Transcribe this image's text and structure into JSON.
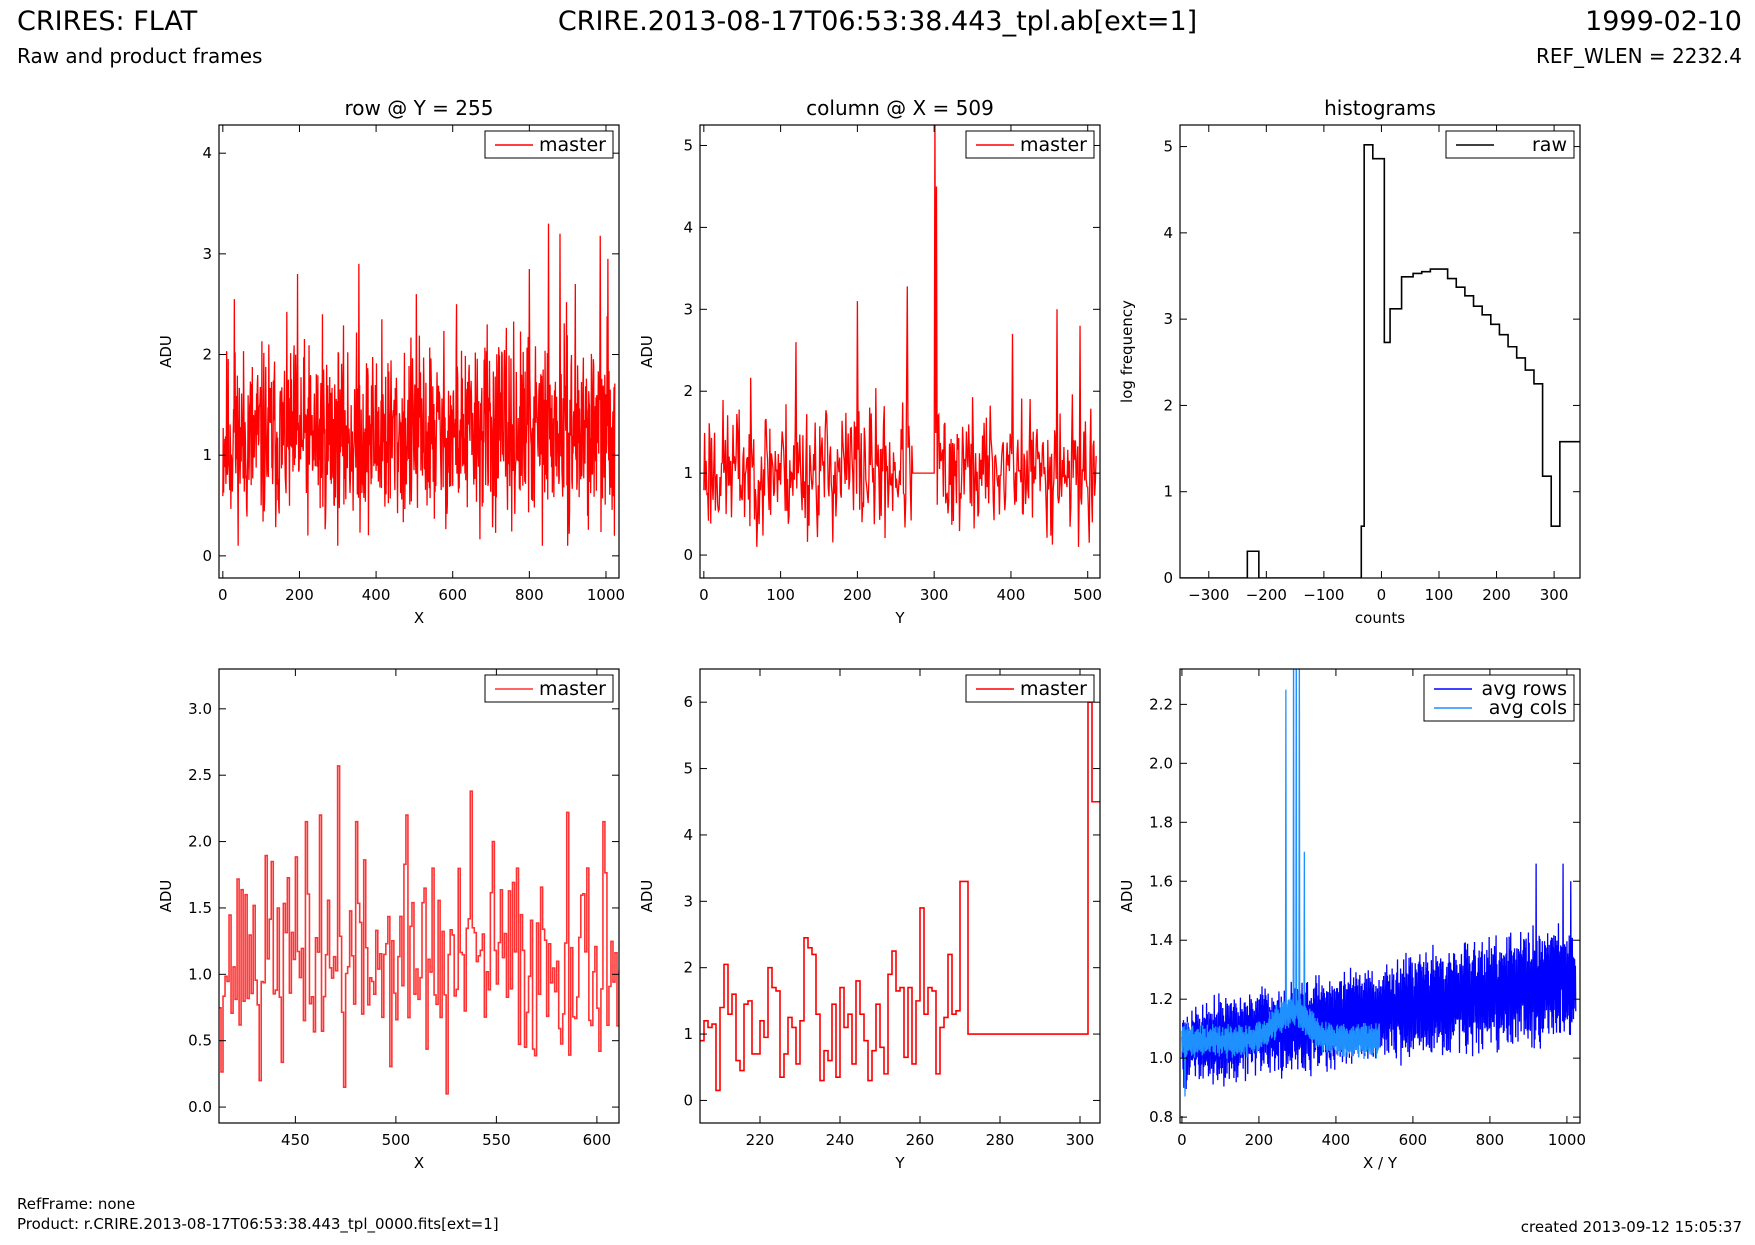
{
  "header": {
    "title_left": "CRIRES: FLAT",
    "subtitle_left": "Raw and product frames",
    "title_center": "CRIRE.2013-08-17T06:53:38.443_tpl.ab[ext=1]",
    "title_right": "1999-02-10",
    "subtitle_right": "REF_WLEN = 2232.4"
  },
  "footer": {
    "refframe": "RefFrame: none",
    "product": "Product: r.CRIRE.2013-08-17T06:53:38.443_tpl_0000.fits[ext=1]",
    "created": "created 2013-09-12 15:05:37"
  },
  "colors": {
    "master": "#ff0000",
    "master_zoom": "#ff3333",
    "raw": "#000000",
    "avg_rows": "#0000ff",
    "avg_cols": "#1e90ff"
  },
  "chart_data": [
    {
      "id": "row",
      "type": "line",
      "title": "row @ Y = 255",
      "xlabel": "X",
      "ylabel": "ADU",
      "xlim": [
        -10,
        1034
      ],
      "ylim": [
        -0.22,
        4.28
      ],
      "xticks": [
        0,
        200,
        400,
        600,
        800,
        1000
      ],
      "yticks": [
        0,
        1,
        2,
        3,
        4
      ],
      "legend": "top-right",
      "series": [
        {
          "name": "master",
          "color": "#ff0000",
          "step": false,
          "generator": {
            "kind": "noise",
            "x0": 0,
            "x1": 1023,
            "n": 1024,
            "base": 1.15,
            "base_end": 1.25,
            "amp": 0.55,
            "min": 0.1,
            "max": 3.3,
            "seed": 11
          },
          "peaks": [
            [
              30,
              2.55
            ],
            [
              120,
              2.1
            ],
            [
              195,
              2.8
            ],
            [
              260,
              2.4
            ],
            [
              355,
              2.9
            ],
            [
              415,
              2.35
            ],
            [
              505,
              2.6
            ],
            [
              610,
              2.5
            ],
            [
              690,
              2.3
            ],
            [
              800,
              2.85
            ],
            [
              850,
              3.3
            ],
            [
              880,
              3.2
            ],
            [
              920,
              2.7
            ],
            [
              985,
              3.18
            ],
            [
              1005,
              2.95
            ],
            [
              1022,
              0.2
            ]
          ]
        }
      ]
    },
    {
      "id": "column",
      "type": "line",
      "title": "column @ X = 509",
      "xlabel": "Y",
      "ylabel": "ADU",
      "xlim": [
        -5,
        516
      ],
      "ylim": [
        -0.28,
        5.25
      ],
      "xticks": [
        0,
        100,
        200,
        300,
        400,
        500
      ],
      "yticks": [
        0,
        1,
        2,
        3,
        4,
        5
      ],
      "legend": "top-right",
      "series": [
        {
          "name": "master",
          "color": "#ff0000",
          "step": false,
          "generator": {
            "kind": "noise",
            "x0": 0,
            "x1": 511,
            "n": 512,
            "base": 1.05,
            "base_end": 1.05,
            "amp": 0.5,
            "min": 0.1,
            "max": 3.3,
            "seed": 23,
            "flat": [
              [
                272,
                301,
                1.0
              ]
            ]
          },
          "peaks": [
            [
              120,
              2.6
            ],
            [
              200,
              3.1
            ],
            [
              265,
              3.28
            ],
            [
              301,
              5.4
            ],
            [
              303,
              4.5
            ],
            [
              402,
              2.7
            ],
            [
              460,
              3.0
            ],
            [
              490,
              2.8
            ],
            [
              502,
              0.15
            ]
          ]
        }
      ]
    },
    {
      "id": "histograms",
      "type": "line",
      "title": "histograms",
      "xlabel": "counts",
      "ylabel": "log frequency",
      "xlim": [
        -350,
        345
      ],
      "ylim": [
        0,
        5.25
      ],
      "xticks": [
        -300,
        -200,
        -100,
        0,
        100,
        200,
        300
      ],
      "yticks": [
        0,
        1,
        2,
        3,
        4,
        5
      ],
      "legend": "top-right",
      "series": [
        {
          "name": "raw",
          "color": "#000000",
          "step": true,
          "edges": [
            -350,
            -233,
            -213,
            -50,
            -35,
            -30,
            -15,
            5,
            15,
            35,
            55,
            70,
            85,
            100,
            115,
            130,
            145,
            160,
            175,
            190,
            205,
            220,
            235,
            250,
            265,
            280,
            295,
            310,
            325,
            345
          ],
          "values": [
            0,
            0.31,
            0,
            0,
            0.6,
            5.02,
            4.86,
            2.73,
            3.12,
            3.49,
            3.53,
            3.55,
            3.58,
            3.58,
            3.47,
            3.37,
            3.27,
            3.15,
            3.05,
            2.94,
            2.82,
            2.68,
            2.55,
            2.41,
            2.25,
            1.18,
            0.6,
            1.58,
            1.58
          ]
        }
      ]
    },
    {
      "id": "row_zoom",
      "type": "line",
      "xlabel": "X",
      "ylabel": "ADU",
      "xlim": [
        412,
        611
      ],
      "ylim": [
        -0.12,
        3.3
      ],
      "xticks": [
        450,
        500,
        550,
        600
      ],
      "yticks": [
        0.0,
        0.5,
        1.0,
        1.5,
        2.0,
        2.5,
        3.0
      ],
      "ytick_decimals": 1,
      "legend": "top-right",
      "series": [
        {
          "name": "master",
          "color": "#ff3333",
          "step": true,
          "generator": {
            "kind": "noise",
            "x0": 412,
            "x1": 611,
            "n": 200,
            "base": 1.08,
            "base_end": 1.08,
            "amp": 0.45,
            "min": 0.15,
            "max": 2.3,
            "seed": 37
          },
          "peaks": [
            [
              425,
              1.6
            ],
            [
              432,
              0.2
            ],
            [
              438,
              1.85
            ],
            [
              455,
              2.15
            ],
            [
              462,
              2.2
            ],
            [
              471,
              2.57
            ],
            [
              480,
              2.15
            ],
            [
              505,
              2.2
            ],
            [
              518,
              1.8
            ],
            [
              537,
              2.38
            ],
            [
              548,
              2.0
            ],
            [
              560,
              1.8
            ],
            [
              585,
              2.22
            ],
            [
              603,
              2.15
            ],
            [
              525,
              0.1
            ],
            [
              474,
              0.15
            ]
          ]
        }
      ]
    },
    {
      "id": "column_zoom",
      "type": "line",
      "xlabel": "Y",
      "ylabel": "ADU",
      "xlim": [
        205,
        305
      ],
      "ylim": [
        -0.34,
        6.5
      ],
      "xticks": [
        220,
        240,
        260,
        280,
        300
      ],
      "yticks": [
        0,
        1,
        2,
        3,
        4,
        5,
        6
      ],
      "legend": "top-right",
      "series": [
        {
          "name": "master",
          "color": "#ff0000",
          "step": true,
          "points": [
            [
              205,
              0.9
            ],
            [
              206,
              1.2
            ],
            [
              207,
              1.1
            ],
            [
              208,
              1.15
            ],
            [
              209,
              0.15
            ],
            [
              210,
              1.4
            ],
            [
              211,
              2.05
            ],
            [
              212,
              1.3
            ],
            [
              213,
              1.6
            ],
            [
              214,
              0.6
            ],
            [
              215,
              0.45
            ],
            [
              216,
              1.45
            ],
            [
              217,
              1.5
            ],
            [
              218,
              0.7
            ],
            [
              219,
              0.7
            ],
            [
              220,
              1.2
            ],
            [
              221,
              0.95
            ],
            [
              222,
              2.0
            ],
            [
              223,
              1.7
            ],
            [
              224,
              1.65
            ],
            [
              225,
              0.35
            ],
            [
              226,
              0.7
            ],
            [
              227,
              1.25
            ],
            [
              228,
              1.1
            ],
            [
              229,
              0.55
            ],
            [
              230,
              1.2
            ],
            [
              231,
              2.45
            ],
            [
              232,
              2.3
            ],
            [
              233,
              2.2
            ],
            [
              234,
              1.3
            ],
            [
              235,
              0.3
            ],
            [
              236,
              0.75
            ],
            [
              237,
              0.6
            ],
            [
              238,
              1.45
            ],
            [
              239,
              0.35
            ],
            [
              240,
              1.7
            ],
            [
              241,
              1.1
            ],
            [
              242,
              1.3
            ],
            [
              243,
              0.55
            ],
            [
              244,
              1.8
            ],
            [
              245,
              1.3
            ],
            [
              246,
              0.9
            ],
            [
              247,
              0.3
            ],
            [
              248,
              0.75
            ],
            [
              249,
              1.45
            ],
            [
              250,
              0.8
            ],
            [
              251,
              0.4
            ],
            [
              252,
              1.9
            ],
            [
              253,
              2.25
            ],
            [
              254,
              1.65
            ],
            [
              255,
              1.7
            ],
            [
              256,
              0.65
            ],
            [
              257,
              1.7
            ],
            [
              258,
              0.55
            ],
            [
              259,
              1.5
            ],
            [
              260,
              2.9
            ],
            [
              261,
              1.3
            ],
            [
              262,
              1.7
            ],
            [
              263,
              1.65
            ],
            [
              264,
              0.4
            ],
            [
              265,
              1.1
            ],
            [
              266,
              1.25
            ],
            [
              267,
              2.2
            ],
            [
              268,
              1.3
            ],
            [
              269,
              1.35
            ],
            [
              270,
              3.3
            ],
            [
              271,
              3.3
            ],
            [
              272,
              1.0
            ],
            [
              301,
              1.0
            ],
            [
              302,
              6.0
            ],
            [
              303,
              4.5
            ],
            [
              305,
              4.5
            ]
          ]
        }
      ]
    },
    {
      "id": "averages",
      "type": "line",
      "xlabel": "X / Y",
      "ylabel": "ADU",
      "xlim": [
        -5,
        1034
      ],
      "ylim": [
        0.78,
        2.32
      ],
      "xticks": [
        0,
        200,
        400,
        600,
        800,
        1000
      ],
      "yticks": [
        0.8,
        1.0,
        1.2,
        1.4,
        1.6,
        1.8,
        2.0,
        2.2
      ],
      "ytick_decimals": 1,
      "legend": "top-right",
      "series": [
        {
          "name": "avg rows",
          "color": "#0000ff",
          "step": false,
          "generator": {
            "kind": "oscillate",
            "x0": 0,
            "x1": 1023,
            "n": 1024,
            "base": 1.04,
            "base_end": 1.27,
            "amp": 0.12,
            "amp_end": 0.18,
            "min": 0.85,
            "max": 1.68,
            "seed": 53
          },
          "peaks": [
            [
              920,
              1.66
            ],
            [
              990,
              1.66
            ],
            [
              1010,
              1.6
            ]
          ]
        },
        {
          "name": "avg cols",
          "color": "#1e90ff",
          "step": false,
          "generator": {
            "kind": "oscillate",
            "x0": 0,
            "x1": 511,
            "n": 512,
            "base": 1.06,
            "base_end": 1.06,
            "amp": 0.05,
            "amp_end": 0.05,
            "min": 0.86,
            "max": 2.4,
            "seed": 71,
            "bump": [
              [
                285,
                0.1,
                60
              ]
            ]
          },
          "peaks": [
            [
              270,
              2.25
            ],
            [
              290,
              2.5
            ],
            [
              297,
              2.5
            ],
            [
              305,
              2.45
            ],
            [
              318,
              1.7
            ],
            [
              8,
              0.87
            ]
          ]
        }
      ]
    }
  ]
}
